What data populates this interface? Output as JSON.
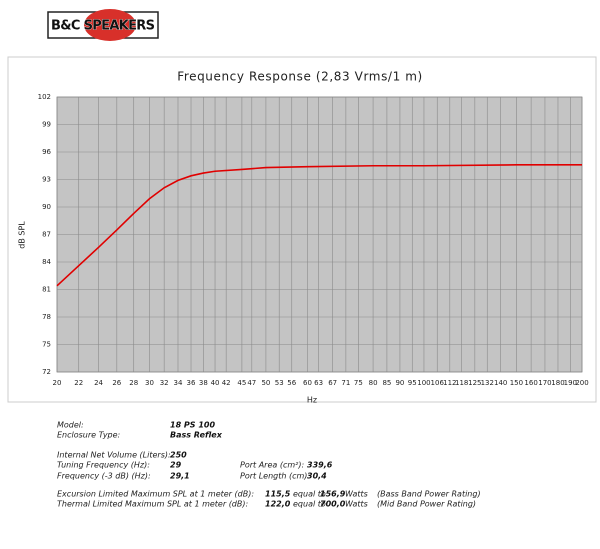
{
  "logo": "B&C SPEAKERS",
  "chart_data": {
    "type": "line",
    "title": "Frequency Response (2,83 Vrms/1 m)",
    "x_label": "Hz",
    "y_label": "dB SPL",
    "x": [
      20,
      22,
      24,
      26,
      28,
      30,
      32,
      34,
      36,
      38,
      40,
      45,
      50,
      60,
      80,
      100,
      150,
      200
    ],
    "series": [
      {
        "name": "SPL",
        "color": "#e00000",
        "values": [
          81.4,
          83.6,
          85.6,
          87.5,
          89.3,
          90.9,
          92.1,
          92.9,
          93.4,
          93.7,
          93.9,
          94.1,
          94.3,
          94.4,
          94.5,
          94.5,
          94.6,
          94.6
        ]
      }
    ],
    "xlim": [
      20,
      200
    ],
    "xscale": "log",
    "xticks": [
      20,
      22,
      24,
      26,
      28,
      30,
      32,
      34,
      36,
      38,
      40,
      42,
      45,
      47,
      50,
      53,
      56,
      60,
      63,
      67,
      71,
      75,
      80,
      85,
      90,
      95,
      100,
      106,
      112,
      118,
      125,
      132,
      140,
      150,
      160,
      170,
      180,
      190,
      200
    ],
    "ylim": [
      72,
      102
    ],
    "yticks": [
      72,
      75,
      78,
      81,
      84,
      87,
      90,
      93,
      96,
      99,
      102
    ],
    "grid": true
  },
  "specs": [
    [
      "Model:",
      "18 PS 100"
    ],
    [
      "Enclosure Type:",
      "Bass Reflex"
    ],
    [
      "Internal  Net Volume (Liters):",
      "250"
    ],
    [
      "Tuning Frequency (Hz):",
      "29",
      "Port Area (cm²):",
      "339,6"
    ],
    [
      "Frequency (-3 dB) (Hz):",
      "29,1",
      "Port Length (cm):",
      "30,4"
    ],
    [
      "Excursion Limited Maximum SPL at 1 meter (dB):",
      "115,5",
      "equal to",
      "156,9",
      "Watts",
      "(Bass Band Power Rating)"
    ],
    [
      "Thermal Limited Maximum SPL at 1 meter (dB):",
      "122,0",
      "equal to",
      "700,0",
      "Watts",
      "(Mid Band Power Rating)"
    ]
  ]
}
